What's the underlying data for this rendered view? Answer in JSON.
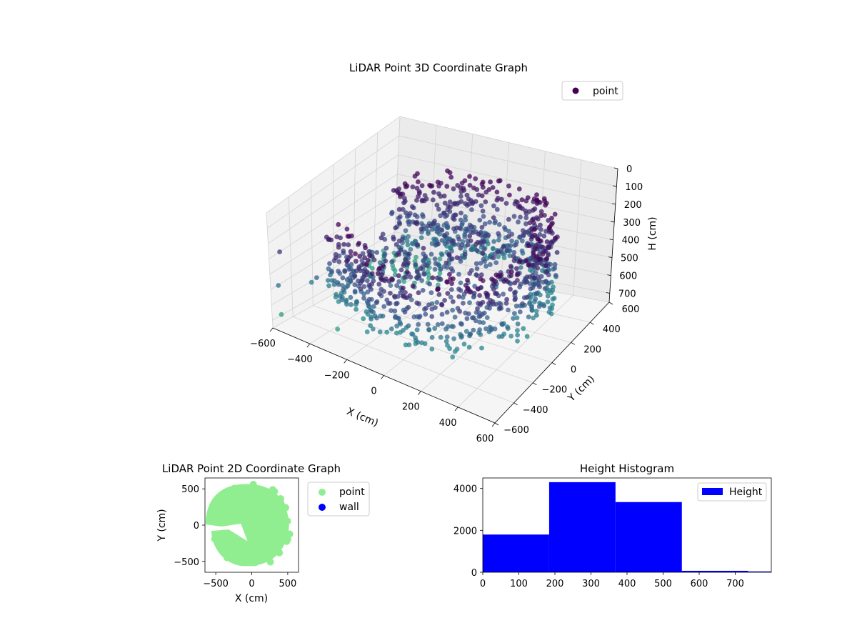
{
  "chart_data": [
    {
      "type": "scatter",
      "title": "LiDAR Point 3D Coordinate Graph",
      "xlabel": "X (cm)",
      "ylabel": "Y (cm)",
      "zlabel": "H (cm)",
      "xlim": [
        -600,
        600
      ],
      "ylim": [
        -600,
        600
      ],
      "zlim": [
        0,
        750
      ],
      "z_inverted": true,
      "x_ticks": [
        -600,
        -400,
        -200,
        0,
        200,
        400,
        600
      ],
      "y_ticks": [
        -600,
        -400,
        -200,
        0,
        200,
        400,
        600
      ],
      "z_ticks": [
        0,
        100,
        200,
        300,
        400,
        500,
        600,
        700
      ],
      "legend": {
        "position": "top-right",
        "entries": [
          {
            "label": "point",
            "color": "#440154"
          }
        ]
      },
      "colormap": "viridis",
      "grid": true,
      "series": [
        {
          "name": "point",
          "description_points": "ring-shaped wall of points around origin radius ~450-550 cm at heights ~150-550 cm, plus sparse columns at x≈-600..-250, y≈300..600, heights ~650-750",
          "x": [],
          "y": [],
          "z": []
        }
      ]
    },
    {
      "type": "scatter",
      "title": "LiDAR Point 2D Coordinate Graph",
      "xlabel": "X (cm)",
      "ylabel": "Y (cm)",
      "xlim": [
        -650,
        650
      ],
      "ylim": [
        -650,
        650
      ],
      "x_ticks": [
        -500,
        0,
        500
      ],
      "y_ticks": [
        -500,
        0,
        500
      ],
      "legend": {
        "position": "outside-right",
        "entries": [
          {
            "label": "point",
            "color": "#90ee90"
          },
          {
            "label": "wall",
            "color": "#0000ff"
          }
        ]
      },
      "series": [
        {
          "name": "point",
          "color": "#90ee90"
        },
        {
          "name": "wall",
          "color": "#0000ff"
        }
      ]
    },
    {
      "type": "bar",
      "title": "Height Histogram",
      "xlim": [
        0,
        800
      ],
      "ylim": [
        0,
        4500
      ],
      "x_ticks": [
        0,
        100,
        200,
        300,
        400,
        500,
        600,
        700
      ],
      "y_ticks": [
        0,
        2000,
        4000
      ],
      "legend": {
        "position": "top-right",
        "entries": [
          {
            "label": "Height",
            "color": "#0000ff"
          }
        ]
      },
      "bins": [
        {
          "start": 0,
          "end": 184,
          "count": 1800
        },
        {
          "start": 184,
          "end": 368,
          "count": 4300
        },
        {
          "start": 368,
          "end": 552,
          "count": 3350
        },
        {
          "start": 552,
          "end": 736,
          "count": 70
        },
        {
          "start": 736,
          "end": 800,
          "count": 40
        }
      ],
      "color": "#0000ff"
    }
  ]
}
